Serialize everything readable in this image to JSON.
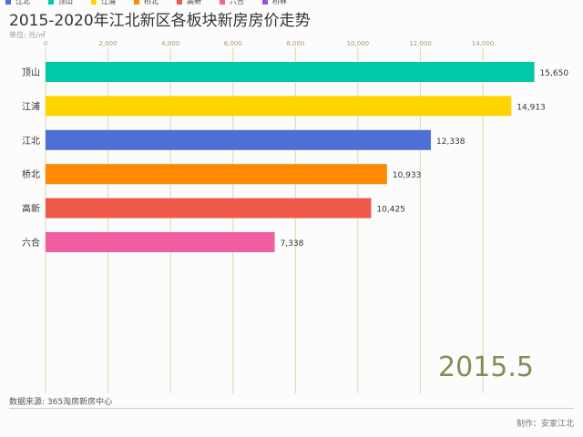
{
  "header": {
    "title": "2015-2020年江北新区各板块新房房价走势",
    "unit": "单位: 元/㎡"
  },
  "legend": [
    {
      "name": "江北",
      "color": "#4d6fd6"
    },
    {
      "name": "顶山",
      "color": "#00c9a7"
    },
    {
      "name": "江浦",
      "color": "#ffd400"
    },
    {
      "name": "桥北",
      "color": "#ff8a00"
    },
    {
      "name": "高新",
      "color": "#f05a4a"
    },
    {
      "name": "六合",
      "color": "#f060a0"
    },
    {
      "name": "桥林",
      "color": "#9b4de0"
    }
  ],
  "footer": {
    "source": "数据来源: 365淘房新房中心",
    "credit": "制作：安家江北"
  },
  "period": "2015.5",
  "chart_data": {
    "type": "bar",
    "orientation": "horizontal",
    "title": "2015-2020年江北新区各板块新房房价走势",
    "ylabel": "单位: 元/㎡",
    "categories": [
      "顶山",
      "江浦",
      "江北",
      "桥北",
      "高新",
      "六合"
    ],
    "values": [
      15650,
      14913,
      12338,
      10933,
      10425,
      7338
    ],
    "value_labels": [
      "15,650",
      "14,913",
      "12,338",
      "10,933",
      "10,425",
      "7,338"
    ],
    "colors": [
      "#00c9a7",
      "#ffd400",
      "#4d6fd6",
      "#ff8a00",
      "#f05a4a",
      "#f060a0"
    ],
    "xlim": [
      0,
      16000
    ],
    "ticks": [
      0,
      2000,
      4000,
      6000,
      8000,
      10000,
      12000,
      14000
    ],
    "tick_labels": [
      "0",
      "2,000",
      "4,000",
      "6,000",
      "8,000",
      "10,000",
      "12,000",
      "14,000"
    ],
    "grid": true,
    "legend_position": "top-left"
  }
}
